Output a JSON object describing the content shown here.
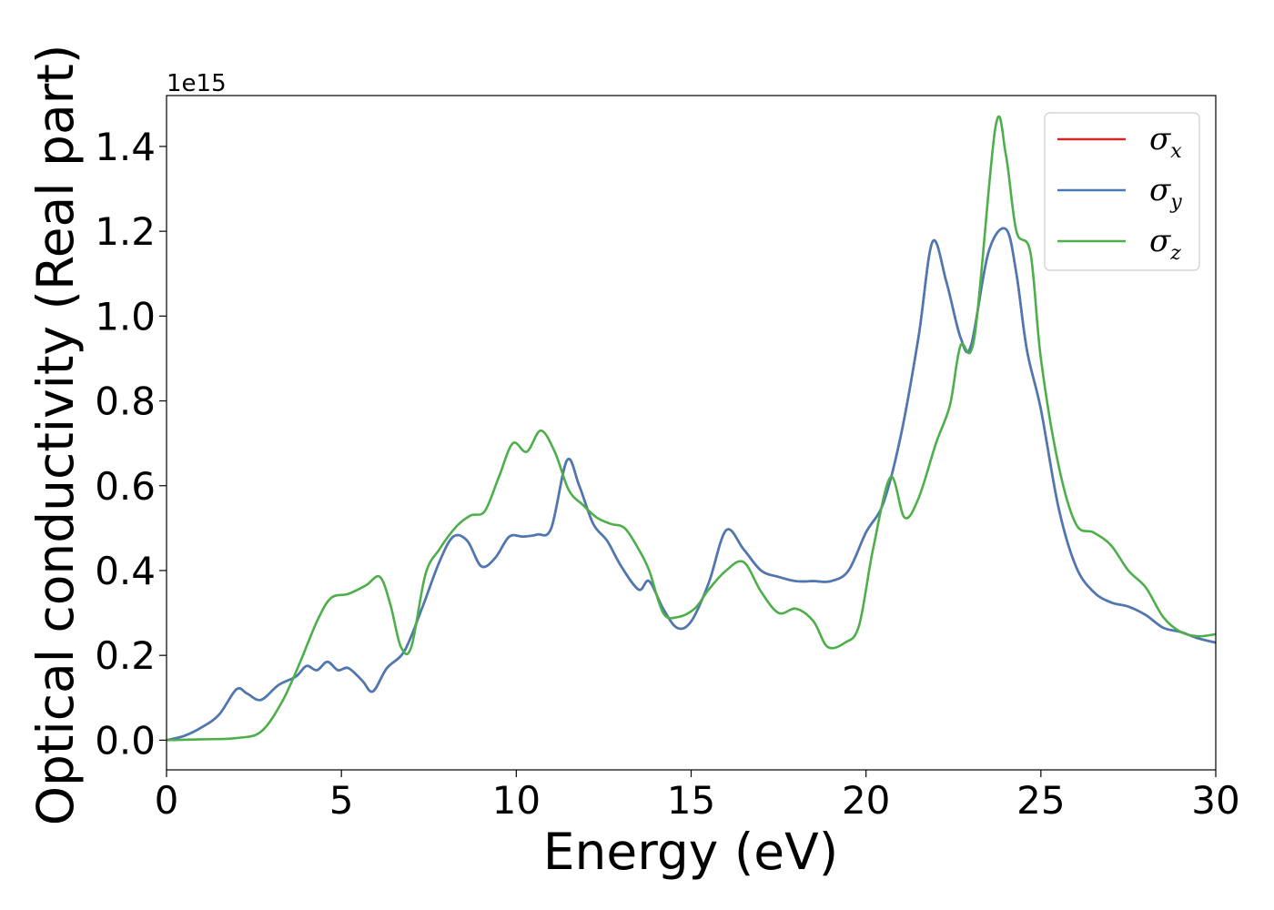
{
  "chart_data": {
    "type": "line",
    "title": "",
    "xlabel": "Energy (eV)",
    "ylabel": "Optical conductivity (Real part)",
    "y_offset_label": "1e15",
    "xlim": [
      0,
      30
    ],
    "ylim": [
      -0.07,
      1.52
    ],
    "xticks": [
      0,
      5,
      10,
      15,
      20,
      25,
      30
    ],
    "xtick_labels": [
      "0",
      "5",
      "10",
      "15",
      "20",
      "25",
      "30"
    ],
    "yticks": [
      0.0,
      0.2,
      0.4,
      0.6,
      0.8,
      1.0,
      1.2,
      1.4
    ],
    "ytick_labels": [
      "0.0",
      "0.2",
      "0.4",
      "0.6",
      "0.8",
      "1.0",
      "1.2",
      "1.4"
    ],
    "grid": false,
    "legend_position": "top-right",
    "series": [
      {
        "name": "σx",
        "legend_symbol": "σ",
        "legend_sub": "x",
        "color": "#d62728",
        "points": [
          [
            0,
            0
          ],
          [
            0.5,
            0.01
          ],
          [
            1.0,
            0.03
          ],
          [
            1.5,
            0.06
          ],
          [
            2.0,
            0.12
          ],
          [
            2.3,
            0.11
          ],
          [
            2.7,
            0.095
          ],
          [
            3.2,
            0.13
          ],
          [
            3.7,
            0.15
          ],
          [
            4.0,
            0.175
          ],
          [
            4.3,
            0.165
          ],
          [
            4.6,
            0.185
          ],
          [
            4.9,
            0.165
          ],
          [
            5.2,
            0.17
          ],
          [
            5.6,
            0.14
          ],
          [
            5.9,
            0.115
          ],
          [
            6.3,
            0.17
          ],
          [
            6.8,
            0.21
          ],
          [
            7.3,
            0.31
          ],
          [
            7.8,
            0.42
          ],
          [
            8.2,
            0.48
          ],
          [
            8.6,
            0.47
          ],
          [
            9.0,
            0.41
          ],
          [
            9.4,
            0.43
          ],
          [
            9.8,
            0.48
          ],
          [
            10.2,
            0.48
          ],
          [
            10.6,
            0.485
          ],
          [
            11.0,
            0.5
          ],
          [
            11.45,
            0.66
          ],
          [
            11.8,
            0.6
          ],
          [
            12.2,
            0.51
          ],
          [
            12.6,
            0.47
          ],
          [
            13.0,
            0.41
          ],
          [
            13.5,
            0.355
          ],
          [
            13.8,
            0.375
          ],
          [
            14.2,
            0.31
          ],
          [
            14.6,
            0.265
          ],
          [
            15.0,
            0.28
          ],
          [
            15.5,
            0.37
          ],
          [
            16.0,
            0.495
          ],
          [
            16.5,
            0.45
          ],
          [
            17.0,
            0.4
          ],
          [
            17.5,
            0.385
          ],
          [
            18.0,
            0.375
          ],
          [
            18.5,
            0.375
          ],
          [
            19.0,
            0.375
          ],
          [
            19.5,
            0.4
          ],
          [
            20.0,
            0.49
          ],
          [
            20.5,
            0.56
          ],
          [
            21.0,
            0.72
          ],
          [
            21.5,
            0.95
          ],
          [
            21.9,
            1.175
          ],
          [
            22.3,
            1.08
          ],
          [
            22.7,
            0.95
          ],
          [
            23.0,
            0.93
          ],
          [
            23.5,
            1.15
          ],
          [
            24.0,
            1.205
          ],
          [
            24.3,
            1.1
          ],
          [
            24.6,
            0.92
          ],
          [
            25.0,
            0.78
          ],
          [
            25.5,
            0.55
          ],
          [
            26.0,
            0.41
          ],
          [
            26.5,
            0.35
          ],
          [
            27.0,
            0.325
          ],
          [
            27.5,
            0.315
          ],
          [
            28.0,
            0.295
          ],
          [
            28.5,
            0.265
          ],
          [
            29.0,
            0.255
          ],
          [
            29.5,
            0.24
          ],
          [
            30.0,
            0.23
          ]
        ]
      },
      {
        "name": "σy",
        "legend_symbol": "σ",
        "legend_sub": "y",
        "color": "#4a7ab5",
        "points": [
          [
            0,
            0
          ],
          [
            0.5,
            0.01
          ],
          [
            1.0,
            0.03
          ],
          [
            1.5,
            0.06
          ],
          [
            2.0,
            0.12
          ],
          [
            2.3,
            0.11
          ],
          [
            2.7,
            0.095
          ],
          [
            3.2,
            0.13
          ],
          [
            3.7,
            0.15
          ],
          [
            4.0,
            0.175
          ],
          [
            4.3,
            0.165
          ],
          [
            4.6,
            0.185
          ],
          [
            4.9,
            0.165
          ],
          [
            5.2,
            0.17
          ],
          [
            5.6,
            0.14
          ],
          [
            5.9,
            0.115
          ],
          [
            6.3,
            0.17
          ],
          [
            6.8,
            0.21
          ],
          [
            7.3,
            0.31
          ],
          [
            7.8,
            0.42
          ],
          [
            8.2,
            0.48
          ],
          [
            8.6,
            0.47
          ],
          [
            9.0,
            0.41
          ],
          [
            9.4,
            0.43
          ],
          [
            9.8,
            0.48
          ],
          [
            10.2,
            0.48
          ],
          [
            10.6,
            0.485
          ],
          [
            11.0,
            0.5
          ],
          [
            11.45,
            0.66
          ],
          [
            11.8,
            0.6
          ],
          [
            12.2,
            0.51
          ],
          [
            12.6,
            0.47
          ],
          [
            13.0,
            0.41
          ],
          [
            13.5,
            0.355
          ],
          [
            13.8,
            0.375
          ],
          [
            14.2,
            0.31
          ],
          [
            14.6,
            0.265
          ],
          [
            15.0,
            0.28
          ],
          [
            15.5,
            0.37
          ],
          [
            16.0,
            0.495
          ],
          [
            16.5,
            0.45
          ],
          [
            17.0,
            0.4
          ],
          [
            17.5,
            0.385
          ],
          [
            18.0,
            0.375
          ],
          [
            18.5,
            0.375
          ],
          [
            19.0,
            0.375
          ],
          [
            19.5,
            0.4
          ],
          [
            20.0,
            0.49
          ],
          [
            20.5,
            0.56
          ],
          [
            21.0,
            0.72
          ],
          [
            21.5,
            0.95
          ],
          [
            21.9,
            1.175
          ],
          [
            22.3,
            1.08
          ],
          [
            22.7,
            0.95
          ],
          [
            23.0,
            0.93
          ],
          [
            23.5,
            1.15
          ],
          [
            24.0,
            1.205
          ],
          [
            24.3,
            1.1
          ],
          [
            24.6,
            0.92
          ],
          [
            25.0,
            0.78
          ],
          [
            25.5,
            0.55
          ],
          [
            26.0,
            0.41
          ],
          [
            26.5,
            0.35
          ],
          [
            27.0,
            0.325
          ],
          [
            27.5,
            0.315
          ],
          [
            28.0,
            0.295
          ],
          [
            28.5,
            0.265
          ],
          [
            29.0,
            0.255
          ],
          [
            29.5,
            0.24
          ],
          [
            30.0,
            0.23
          ]
        ]
      },
      {
        "name": "σz",
        "legend_symbol": "σ",
        "legend_sub": "z",
        "color": "#4daf4a",
        "points": [
          [
            0,
            0
          ],
          [
            1.0,
            0.002
          ],
          [
            2.0,
            0.005
          ],
          [
            2.7,
            0.02
          ],
          [
            3.3,
            0.09
          ],
          [
            3.8,
            0.18
          ],
          [
            4.3,
            0.28
          ],
          [
            4.7,
            0.335
          ],
          [
            5.2,
            0.345
          ],
          [
            5.7,
            0.365
          ],
          [
            6.1,
            0.385
          ],
          [
            6.4,
            0.32
          ],
          [
            6.7,
            0.22
          ],
          [
            7.0,
            0.22
          ],
          [
            7.4,
            0.39
          ],
          [
            7.8,
            0.45
          ],
          [
            8.3,
            0.505
          ],
          [
            8.7,
            0.53
          ],
          [
            9.1,
            0.54
          ],
          [
            9.5,
            0.62
          ],
          [
            9.9,
            0.7
          ],
          [
            10.3,
            0.68
          ],
          [
            10.7,
            0.73
          ],
          [
            11.1,
            0.68
          ],
          [
            11.5,
            0.59
          ],
          [
            11.9,
            0.555
          ],
          [
            12.3,
            0.525
          ],
          [
            12.7,
            0.51
          ],
          [
            13.1,
            0.5
          ],
          [
            13.5,
            0.45
          ],
          [
            13.8,
            0.4
          ],
          [
            14.2,
            0.3
          ],
          [
            14.6,
            0.29
          ],
          [
            15.1,
            0.31
          ],
          [
            15.5,
            0.355
          ],
          [
            16.0,
            0.4
          ],
          [
            16.5,
            0.42
          ],
          [
            17.0,
            0.35
          ],
          [
            17.5,
            0.3
          ],
          [
            18.0,
            0.31
          ],
          [
            18.5,
            0.28
          ],
          [
            18.9,
            0.22
          ],
          [
            19.4,
            0.23
          ],
          [
            19.8,
            0.27
          ],
          [
            20.2,
            0.45
          ],
          [
            20.7,
            0.62
          ],
          [
            21.1,
            0.525
          ],
          [
            21.5,
            0.57
          ],
          [
            22.0,
            0.7
          ],
          [
            22.4,
            0.79
          ],
          [
            22.7,
            0.93
          ],
          [
            23.1,
            0.95
          ],
          [
            23.7,
            1.445
          ],
          [
            24.0,
            1.38
          ],
          [
            24.3,
            1.2
          ],
          [
            24.7,
            1.15
          ],
          [
            25.0,
            0.9
          ],
          [
            25.5,
            0.65
          ],
          [
            26.0,
            0.51
          ],
          [
            26.5,
            0.49
          ],
          [
            27.0,
            0.46
          ],
          [
            27.5,
            0.4
          ],
          [
            28.0,
            0.36
          ],
          [
            28.5,
            0.29
          ],
          [
            29.0,
            0.255
          ],
          [
            29.5,
            0.245
          ],
          [
            30.0,
            0.25
          ]
        ]
      }
    ]
  }
}
